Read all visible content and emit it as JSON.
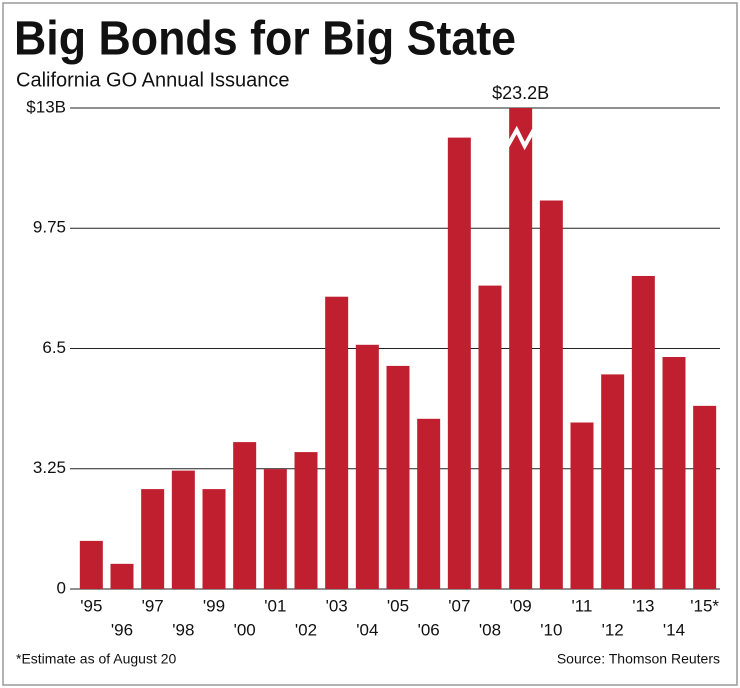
{
  "chart_data": {
    "type": "bar",
    "title": "Big Bonds for Big State",
    "subtitle": "California GO Annual Issuance",
    "categories": [
      "'95",
      "'96",
      "'97",
      "'98",
      "'99",
      "'00",
      "'01",
      "'02",
      "'03",
      "'04",
      "'05",
      "'06",
      "'07",
      "'08",
      "'09",
      "'10",
      "'11",
      "'12",
      "'13",
      "'14",
      "'15*"
    ],
    "values": [
      1.3,
      0.68,
      2.7,
      3.2,
      2.7,
      3.97,
      3.24,
      3.7,
      7.9,
      6.6,
      6.03,
      4.6,
      12.2,
      8.2,
      23.2,
      10.5,
      4.5,
      5.8,
      8.46,
      6.27,
      4.95
    ],
    "value_labels": [
      null,
      null,
      null,
      null,
      null,
      null,
      null,
      null,
      null,
      null,
      null,
      null,
      null,
      null,
      "$23.2B",
      null,
      null,
      null,
      null,
      null,
      null
    ],
    "color": "#c01f30",
    "ylim": [
      0,
      13
    ],
    "yticks": [
      0,
      3.25,
      6.5,
      9.75,
      {
        "value": 13,
        "label": "$13B"
      }
    ],
    "grid": true,
    "footnote": "*Estimate as of August 20",
    "source": "Source: Thomson Reuters"
  }
}
